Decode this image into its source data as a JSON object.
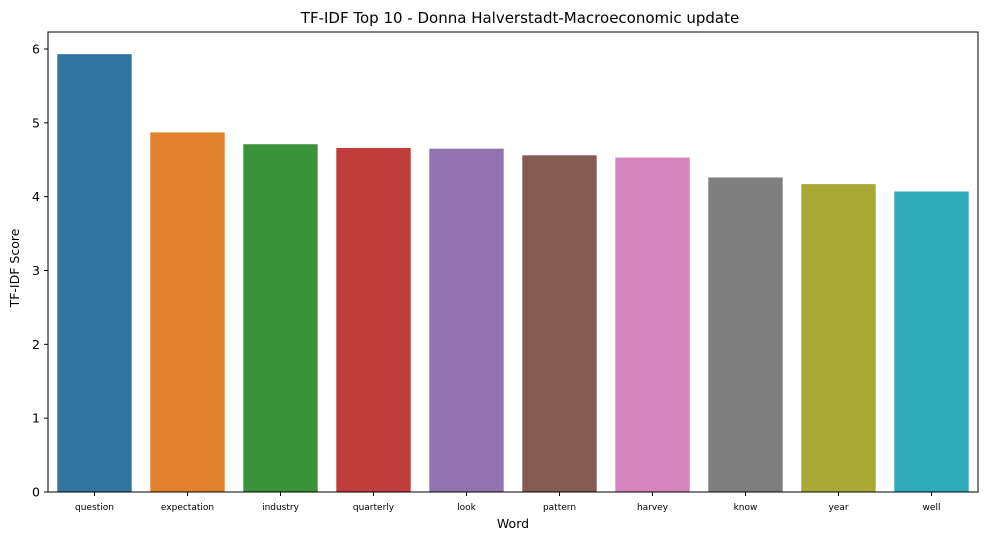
{
  "chart_data": {
    "type": "bar",
    "title": "TF-IDF Top 10 - Donna Halverstadt-Macroeconomic update",
    "xlabel": "Word",
    "ylabel": "TF-IDF Score",
    "categories": [
      "question",
      "expectation",
      "industry",
      "quarterly",
      "look",
      "pattern",
      "harvey",
      "know",
      "year",
      "well"
    ],
    "values": [
      5.93,
      4.87,
      4.71,
      4.66,
      4.65,
      4.56,
      4.53,
      4.26,
      4.17,
      4.07
    ],
    "colors": [
      "#3274a1",
      "#e1812c",
      "#3a923a",
      "#c03d3e",
      "#9372b2",
      "#845b53",
      "#d684bd",
      "#7f7f7f",
      "#a9aa35",
      "#2eabb8"
    ],
    "ylim": [
      0,
      6.23
    ],
    "yticks": [
      0,
      1,
      2,
      3,
      4,
      5,
      6
    ],
    "grid": false,
    "legend": "none"
  }
}
